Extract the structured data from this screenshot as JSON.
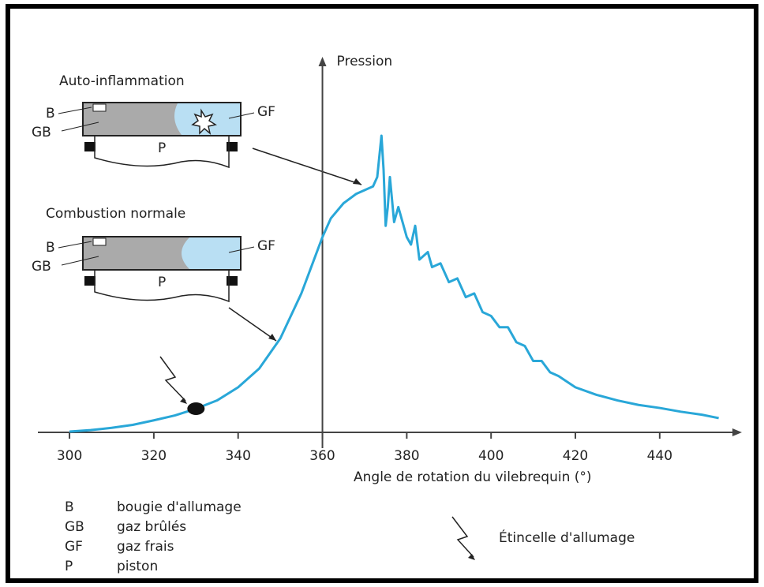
{
  "chart_data": {
    "type": "line",
    "y_label": "Pression",
    "x_label": "Angle de rotation du vilebrequin (°)",
    "x": [
      300,
      305,
      310,
      315,
      320,
      325,
      330,
      335,
      340,
      345,
      350,
      355,
      358,
      360,
      362,
      365,
      368,
      370,
      372,
      373,
      374,
      374.5,
      375,
      375.5,
      376,
      377,
      378,
      380,
      381,
      382,
      383,
      385,
      386,
      388,
      390,
      392,
      394,
      396,
      398,
      400,
      402,
      404,
      406,
      408,
      410,
      412,
      414,
      416,
      420,
      425,
      430,
      435,
      440,
      445,
      450,
      454
    ],
    "series": [
      {
        "color": "#29a7d8",
        "values": [
          0.2,
          0.6,
          1.2,
          2,
          3.2,
          4.5,
          6.3,
          8.5,
          12,
          17,
          25,
          37,
          46,
          52,
          57,
          61,
          63.5,
          64.5,
          65.5,
          68,
          79,
          70,
          55,
          60,
          68,
          56,
          60,
          52,
          50,
          55,
          46,
          48,
          44,
          45,
          40,
          41,
          36,
          37,
          32,
          31,
          28,
          28,
          24,
          23,
          19,
          19,
          16,
          15,
          12,
          10,
          8.5,
          7.3,
          6.5,
          5.5,
          4.7,
          3.8
        ]
      }
    ],
    "xlim": [
      292.5,
      459.5
    ],
    "xticks": [
      300,
      320,
      340,
      360,
      380,
      400,
      420,
      440
    ],
    "ylim": [
      0,
      100
    ],
    "y_axis_at": 360,
    "markers": [
      {
        "x": 330,
        "y": 6.3
      }
    ],
    "diagrams": [
      {
        "title": "Auto-inflammation",
        "labels": [
          "B",
          "GB",
          "GF",
          "P"
        ]
      },
      {
        "title": "Combustion normale",
        "labels": [
          "B",
          "GB",
          "GF",
          "P"
        ]
      }
    ],
    "legend": [
      {
        "abbr": "B",
        "text": "bougie d'allumage"
      },
      {
        "abbr": "GB",
        "text": "gaz brûlés"
      },
      {
        "abbr": "GF",
        "text": "gaz frais"
      },
      {
        "abbr": "P",
        "text": "piston"
      }
    ],
    "spark_label": "Étincelle d'allumage"
  }
}
